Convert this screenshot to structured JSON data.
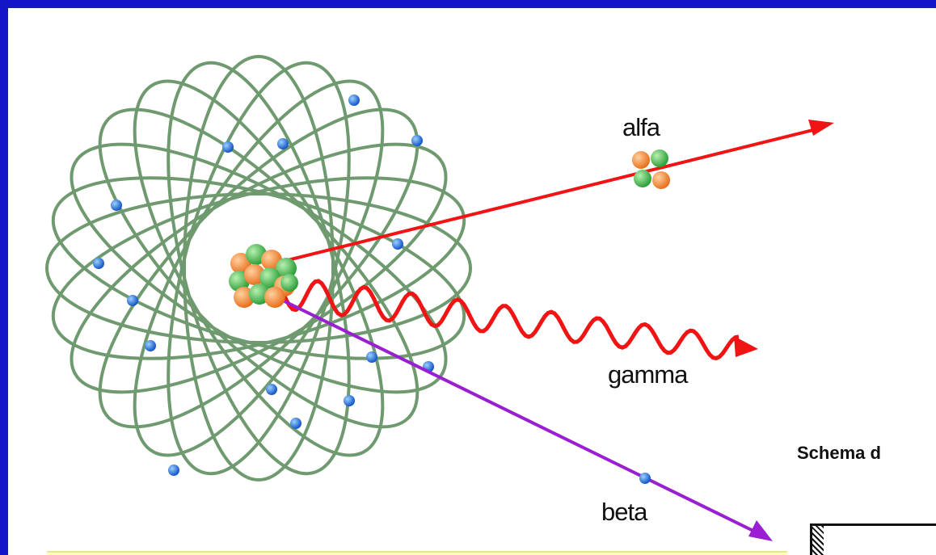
{
  "labels": {
    "alpha": "alfa",
    "gamma": "gamma",
    "beta": "beta",
    "schema_title": "Schema d"
  },
  "colors": {
    "frame": "#1414c8",
    "orbit": "#6f9a6f",
    "electron": "#1e6ee6",
    "alpha_ray": "#f01414",
    "gamma_ray": "#f01414",
    "beta_ray": "#9a1ed2",
    "note_background": "#ffffb4"
  }
}
